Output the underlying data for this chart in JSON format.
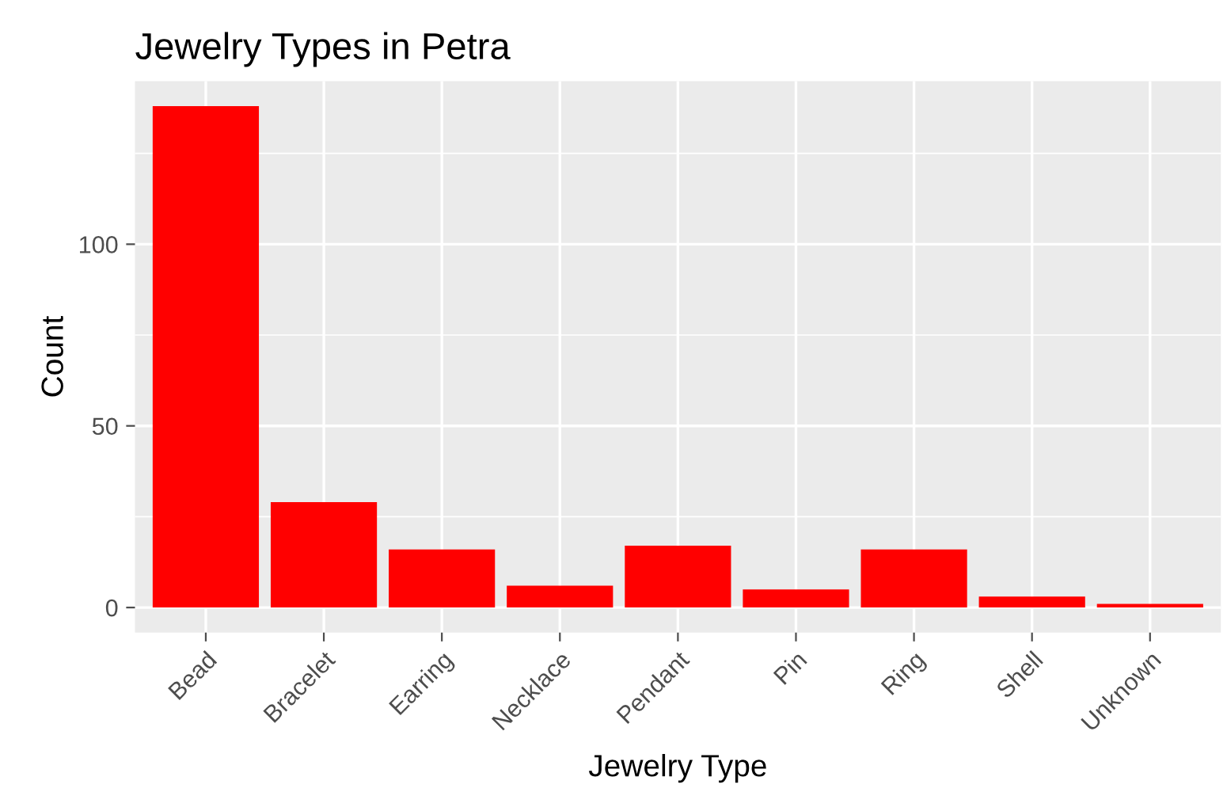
{
  "chart_data": {
    "type": "bar",
    "title": "Jewelry Types in Petra",
    "xlabel": "Jewelry Type",
    "ylabel": "Count",
    "categories": [
      "Bead",
      "Bracelet",
      "Earring",
      "Necklace",
      "Pendant",
      "Pin",
      "Ring",
      "Shell",
      "Unknown"
    ],
    "values": [
      138,
      29,
      16,
      6,
      17,
      5,
      16,
      3,
      1
    ],
    "color": "#ff0000",
    "ylim": [
      -6.9,
      144.9
    ],
    "yticks": [
      0,
      50,
      100
    ],
    "grid": true
  }
}
